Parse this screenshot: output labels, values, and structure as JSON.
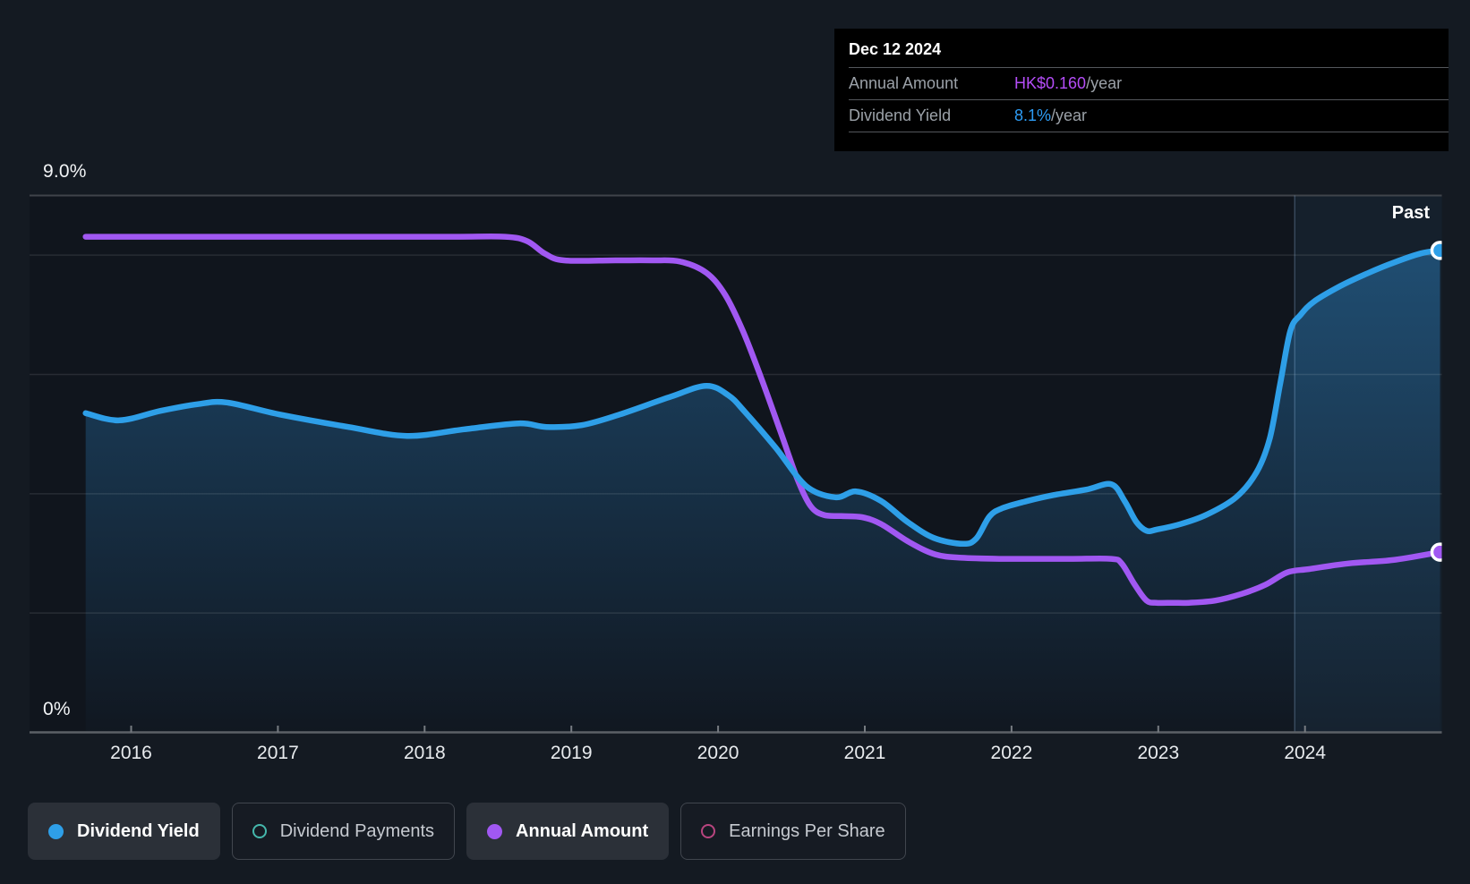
{
  "y_axis": {
    "top_label": "9.0%",
    "bottom_label": "0%"
  },
  "x_axis": {
    "years": [
      "2016",
      "2017",
      "2018",
      "2019",
      "2020",
      "2021",
      "2022",
      "2023",
      "2024"
    ]
  },
  "past_label": "Past",
  "tooltip": {
    "date": "Dec 12 2024",
    "rows": [
      {
        "label": "Annual Amount",
        "value": "HK$0.160",
        "suffix": "/year",
        "color_key": "annual_amount_text"
      },
      {
        "label": "Dividend Yield",
        "value": "8.1%",
        "suffix": "/year",
        "color_key": "dividend_yield_text"
      }
    ]
  },
  "legend": [
    {
      "label": "Dividend Yield",
      "active": true,
      "color_key": "dividend_yield"
    },
    {
      "label": "Dividend Payments",
      "active": false,
      "color_key": "dividend_payments"
    },
    {
      "label": "Annual Amount",
      "active": true,
      "color_key": "annual_amount"
    },
    {
      "label": "Earnings Per Share",
      "active": false,
      "color_key": "earnings_per_share"
    }
  ],
  "colors": {
    "dividend_yield": "#2e9fe8",
    "dividend_payments": "#45b8ac",
    "annual_amount": "#a158f2",
    "earnings_per_share": "#b8457f",
    "annual_amount_text": "#b44df7",
    "dividend_yield_text": "#2d9cf4",
    "area_fill": "#2e8cd2",
    "past_band": "rgba(100,170,235,0.075)",
    "grid": "rgba(255,255,255,0.10)",
    "grid_top": "#3f444b",
    "axis": "#5c6167",
    "plot_bg": "#10151d"
  },
  "chart_data": {
    "type": "line",
    "title": "Dividend yield and annual dividend amount history",
    "x_range": [
      2015.69,
      2024.92
    ],
    "y_left": {
      "label": "Dividend Yield",
      "unit": "%",
      "min": 0,
      "max": 9,
      "gridlines": [
        8,
        6,
        4,
        2
      ],
      "top_border": 9
    },
    "y_right": {
      "label": "Annual Amount",
      "unit": "HK$",
      "min": 0,
      "max": 0.4766
    },
    "past_band_start": 2023.93,
    "legend_position": "bottom",
    "series": [
      {
        "name": "Dividend Yield",
        "unit": "%",
        "axis": "pct",
        "color_key": "dividend_yield",
        "area": true,
        "end_marker": {
          "x": 2024.92,
          "y": 8.08
        },
        "points": [
          [
            2015.69,
            5.35
          ],
          [
            2015.92,
            5.23
          ],
          [
            2016.2,
            5.39
          ],
          [
            2016.45,
            5.5
          ],
          [
            2016.65,
            5.53
          ],
          [
            2017.01,
            5.33
          ],
          [
            2017.48,
            5.12
          ],
          [
            2017.88,
            4.97
          ],
          [
            2018.27,
            5.08
          ],
          [
            2018.64,
            5.18
          ],
          [
            2018.83,
            5.12
          ],
          [
            2019.07,
            5.15
          ],
          [
            2019.33,
            5.33
          ],
          [
            2019.68,
            5.63
          ],
          [
            2019.92,
            5.81
          ],
          [
            2020.07,
            5.65
          ],
          [
            2020.18,
            5.38
          ],
          [
            2020.39,
            4.78
          ],
          [
            2020.6,
            4.13
          ],
          [
            2020.8,
            3.94
          ],
          [
            2020.94,
            4.04
          ],
          [
            2021.11,
            3.88
          ],
          [
            2021.29,
            3.53
          ],
          [
            2021.47,
            3.26
          ],
          [
            2021.67,
            3.16
          ],
          [
            2021.76,
            3.25
          ],
          [
            2021.85,
            3.62
          ],
          [
            2021.94,
            3.76
          ],
          [
            2022.11,
            3.88
          ],
          [
            2022.29,
            3.98
          ],
          [
            2022.51,
            4.07
          ],
          [
            2022.68,
            4.16
          ],
          [
            2022.77,
            3.88
          ],
          [
            2022.85,
            3.53
          ],
          [
            2022.92,
            3.38
          ],
          [
            2022.99,
            3.4
          ],
          [
            2023.15,
            3.49
          ],
          [
            2023.33,
            3.65
          ],
          [
            2023.53,
            3.94
          ],
          [
            2023.67,
            4.36
          ],
          [
            2023.76,
            4.93
          ],
          [
            2023.83,
            5.83
          ],
          [
            2023.9,
            6.73
          ],
          [
            2023.97,
            7.0
          ],
          [
            2024.06,
            7.22
          ],
          [
            2024.24,
            7.48
          ],
          [
            2024.43,
            7.7
          ],
          [
            2024.61,
            7.88
          ],
          [
            2024.79,
            8.03
          ],
          [
            2024.92,
            8.08
          ]
        ]
      },
      {
        "name": "Annual Amount",
        "unit": "HK$",
        "axis": "hkd",
        "color_key": "annual_amount",
        "area": false,
        "end_marker": {
          "x": 2024.92,
          "y": 0.16
        },
        "points": [
          [
            2015.69,
            0.44
          ],
          [
            2016.5,
            0.44
          ],
          [
            2017.5,
            0.44
          ],
          [
            2018.2,
            0.44
          ],
          [
            2018.55,
            0.44
          ],
          [
            2018.7,
            0.436
          ],
          [
            2018.82,
            0.425
          ],
          [
            2018.95,
            0.419
          ],
          [
            2019.3,
            0.419
          ],
          [
            2019.55,
            0.419
          ],
          [
            2019.74,
            0.418
          ],
          [
            2019.92,
            0.408
          ],
          [
            2020.05,
            0.388
          ],
          [
            2020.17,
            0.356
          ],
          [
            2020.29,
            0.316
          ],
          [
            2020.42,
            0.269
          ],
          [
            2020.54,
            0.225
          ],
          [
            2020.63,
            0.201
          ],
          [
            2020.72,
            0.193
          ],
          [
            2020.84,
            0.192
          ],
          [
            2020.98,
            0.191
          ],
          [
            2021.11,
            0.185
          ],
          [
            2021.3,
            0.169
          ],
          [
            2021.48,
            0.158
          ],
          [
            2021.66,
            0.155
          ],
          [
            2021.93,
            0.154
          ],
          [
            2022.2,
            0.154
          ],
          [
            2022.42,
            0.154
          ],
          [
            2022.68,
            0.154
          ],
          [
            2022.75,
            0.15
          ],
          [
            2022.84,
            0.131
          ],
          [
            2022.92,
            0.117
          ],
          [
            2022.99,
            0.115
          ],
          [
            2023.1,
            0.115
          ],
          [
            2023.21,
            0.115
          ],
          [
            2023.39,
            0.117
          ],
          [
            2023.57,
            0.123
          ],
          [
            2023.73,
            0.131
          ],
          [
            2023.88,
            0.142
          ],
          [
            2024.03,
            0.145
          ],
          [
            2024.3,
            0.15
          ],
          [
            2024.6,
            0.153
          ],
          [
            2024.92,
            0.16
          ]
        ]
      }
    ]
  }
}
